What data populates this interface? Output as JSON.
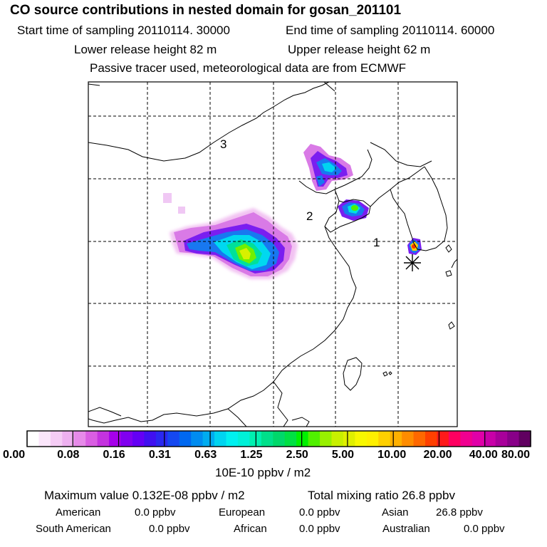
{
  "header": {
    "title": "CO  source contributions in nested domain for gosan_201101",
    "start_label": "Start time of sampling 20110114. 30000",
    "end_label": "End time of sampling 20110114. 60000",
    "lower_label": "Lower release height   82 m",
    "upper_label": "Upper release height   62 m",
    "tracer_note": "Passive tracer used, meteorological data are from ECMWF"
  },
  "map": {
    "region_labels": [
      "1",
      "2",
      "3"
    ],
    "receptor_marker": "gosan-receptor-asterisk"
  },
  "colorbar": {
    "tick_labels": [
      "0.00",
      "0.08",
      "0.16",
      "0.31",
      "0.63",
      "1.25",
      "2.50",
      "5.00",
      "10.00",
      "20.00",
      "40.00",
      "80.00"
    ],
    "unit_label": "10E-10 ppbv / m2",
    "colors": [
      "#ffffff",
      "#fbe6fb",
      "#f5ccf5",
      "#eeb0f0",
      "#e68ae9",
      "#d95ee2",
      "#c433df",
      "#a600ea",
      "#8000f0",
      "#6400f5",
      "#4010f0",
      "#2a28f0",
      "#1548f0",
      "#0068f0",
      "#008cf0",
      "#00acf0",
      "#00d4f0",
      "#00f0f0",
      "#00f0d8",
      "#00f0b0",
      "#00e08a",
      "#00d86a",
      "#00e044",
      "#00f000",
      "#50f000",
      "#98f000",
      "#c8f000",
      "#e0f000",
      "#f8f800",
      "#fff000",
      "#ffd000",
      "#ffb000",
      "#ff8c00",
      "#ff6800",
      "#ff4000",
      "#ff1a1a",
      "#ff0060",
      "#f00090",
      "#e000a8",
      "#c800a8",
      "#a8009a",
      "#880088",
      "#600060"
    ]
  },
  "stats": {
    "max_label": "Maximum value  0.132E-08 ppbv / m2",
    "total_label": "Total mixing ratio       26.8 ppbv",
    "regions_row1": [
      {
        "name": "American",
        "value": "0.0 ppbv"
      },
      {
        "name": "European",
        "value": "0.0 ppbv"
      },
      {
        "name": "Asian",
        "value": "26.8 ppbv"
      }
    ],
    "regions_row2": [
      {
        "name": "South American",
        "value": "0.0 ppbv"
      },
      {
        "name": "African",
        "value": "0.0 ppbv"
      },
      {
        "name": "Australian",
        "value": "0.0 ppbv"
      }
    ]
  }
}
